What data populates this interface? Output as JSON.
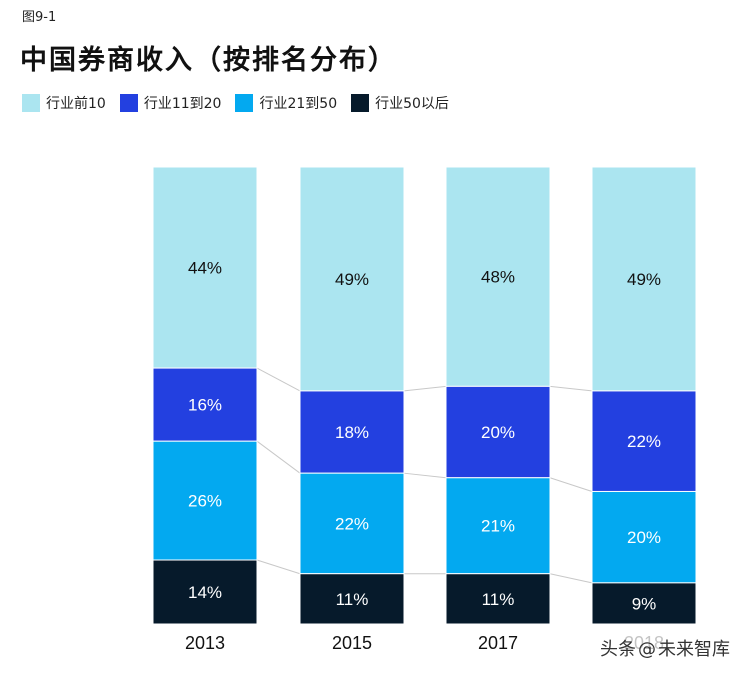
{
  "figure_label": "图9-1",
  "title": "中国券商收入（按排名分布）",
  "watermark": {
    "prefix": "头条",
    "sep": "@",
    "account": "未来智库"
  },
  "chart_data": {
    "type": "bar",
    "stacked": true,
    "normalized": true,
    "categories": [
      "2013",
      "2015",
      "2017",
      "2018"
    ],
    "series": [
      {
        "name": "行业前10",
        "color": "#ABE5F0",
        "text_color": "#111111",
        "values": [
          44,
          49,
          48,
          49
        ]
      },
      {
        "name": "行业11到20",
        "color": "#2340E0",
        "text_color": "#ffffff",
        "values": [
          16,
          18,
          20,
          22
        ]
      },
      {
        "name": "行业21到50",
        "color": "#03A9F0",
        "text_color": "#ffffff",
        "values": [
          26,
          22,
          21,
          20
        ]
      },
      {
        "name": "行业50以后",
        "color": "#061A2B",
        "text_color": "#ffffff",
        "values": [
          14,
          11,
          11,
          9
        ]
      }
    ],
    "value_suffix": "%",
    "legend_position": "top-left",
    "grid": false
  }
}
